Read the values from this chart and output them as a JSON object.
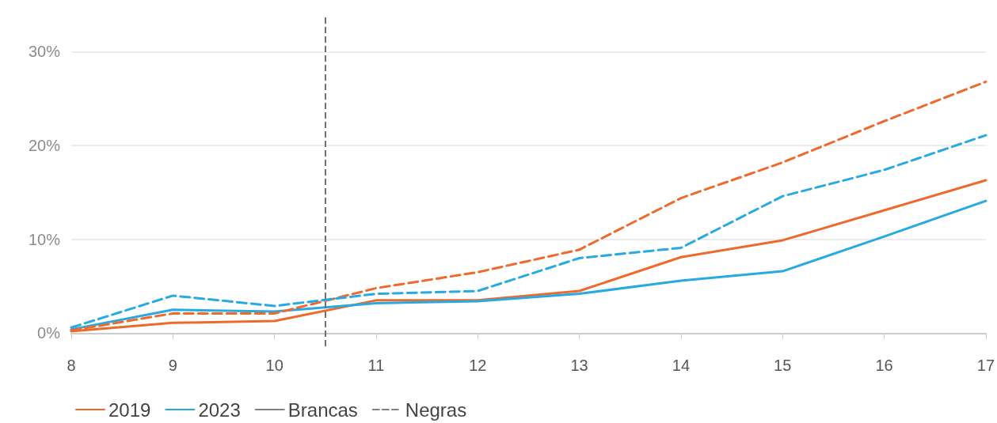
{
  "chart_data": {
    "type": "line",
    "x": [
      8,
      9,
      10,
      11,
      12,
      13,
      14,
      15,
      16,
      17
    ],
    "xlim": [
      8,
      17
    ],
    "xticks": [
      8,
      9,
      10,
      11,
      12,
      13,
      14,
      15,
      16,
      17
    ],
    "ylim": [
      -1.4,
      34
    ],
    "yticks": [
      {
        "value": 0,
        "label": "0%"
      },
      {
        "value": 10,
        "label": "10%"
      },
      {
        "value": 20,
        "label": "20%"
      },
      {
        "value": 30,
        "label": "30%"
      }
    ],
    "grid": "y",
    "legend": "bottom left",
    "marker": "none",
    "series": [
      {
        "name": "2019",
        "color": "#ee6a2c",
        "line_style": "solid",
        "values": [
          0.2,
          1.1,
          1.3,
          3.5,
          3.5,
          4.5,
          8.1,
          9.9,
          13.1,
          16.3
        ]
      },
      {
        "name": "2023",
        "color": "#27aae1",
        "line_style": "solid",
        "values": [
          0.4,
          2.5,
          2.3,
          3.2,
          3.4,
          4.2,
          5.6,
          6.6,
          10.3,
          14.1
        ]
      },
      {
        "name": "Brancas",
        "color": "#808080",
        "line_style": "solid",
        "values": [
          null,
          null,
          null,
          null,
          null,
          null,
          null,
          null,
          null,
          null
        ]
      },
      {
        "name": "Negras",
        "color": "#808080",
        "line_style": "dashed",
        "values": [
          null,
          null,
          null,
          null,
          null,
          null,
          null,
          null,
          null,
          null
        ]
      },
      {
        "color": "#ee6a2c",
        "line_style": "dashed",
        "values": [
          0.3,
          2.1,
          2.1,
          4.8,
          6.5,
          8.9,
          14.4,
          18.2,
          22.6,
          26.8
        ]
      },
      {
        "color": "#27aae1",
        "line_style": "dashed",
        "values": [
          0.6,
          4.0,
          2.9,
          4.2,
          4.5,
          8.0,
          9.1,
          14.6,
          17.4,
          21.1
        ]
      }
    ],
    "ref_lines": [
      {
        "axis": "x",
        "value": 10.5,
        "color": "#707070",
        "line_style": "dashed"
      }
    ]
  }
}
